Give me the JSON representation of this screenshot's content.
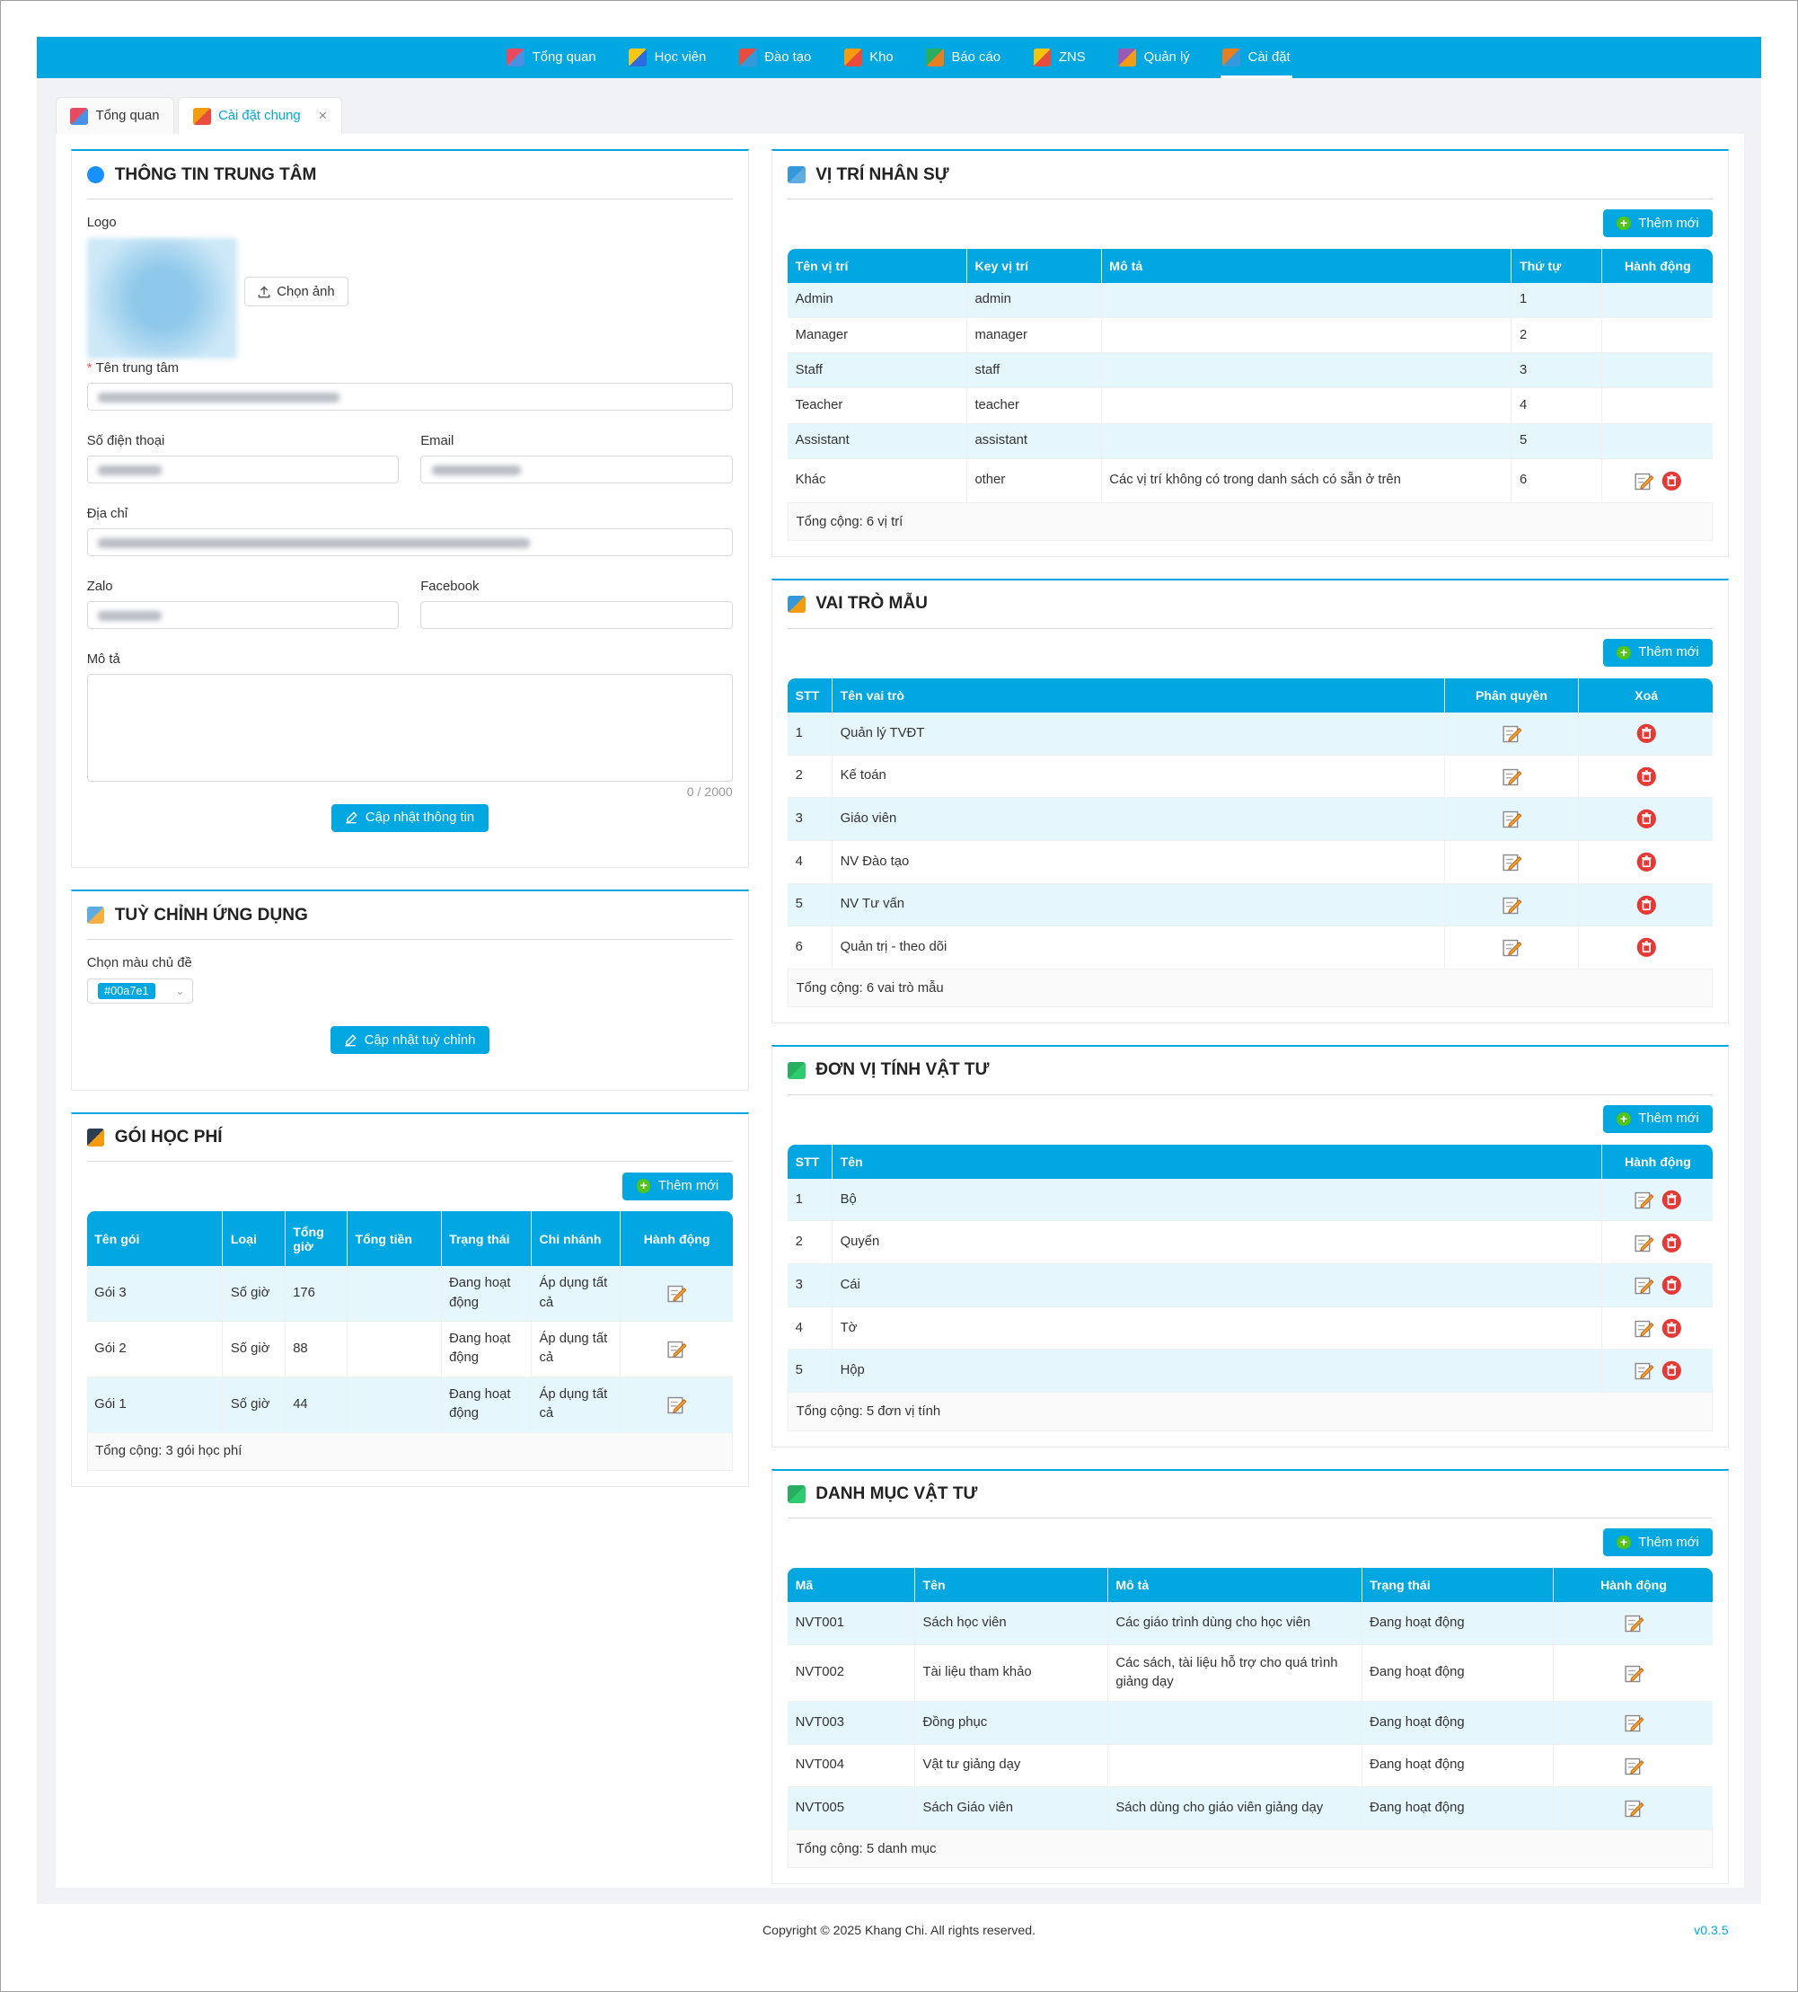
{
  "nav": {
    "items": [
      "Tổng quan",
      "Học viên",
      "Đào tạo",
      "Kho",
      "Báo cáo",
      "ZNS",
      "Quản lý",
      "Cài đặt"
    ],
    "active": 7
  },
  "tabs": {
    "items": [
      "Tổng quan",
      "Cài đặt chung"
    ],
    "active": 1
  },
  "center_info": {
    "title": "THÔNG TIN TRUNG TÂM",
    "logo_label": "Logo",
    "upload_button": "Chọn ảnh",
    "fields": {
      "name": "Tên trung tâm",
      "phone": "Số điện thoại",
      "email": "Email",
      "address": "Địa chỉ",
      "zalo": "Zalo",
      "facebook": "Facebook",
      "description": "Mô tả"
    },
    "char_count": "0 / 2000",
    "submit": "Cập nhật thông tin"
  },
  "customize": {
    "title": "TUỲ CHỈNH ỨNG DỤNG",
    "color_label": "Chọn màu chủ đề",
    "color_value": "#00a7e1",
    "submit": "Cập nhật tuỳ chỉnh"
  },
  "fee_packages": {
    "title": "GÓI HỌC PHÍ",
    "add_button": "Thêm mới",
    "columns": [
      "Tên gói",
      "Loại",
      "Tổng giờ",
      "Tổng tiền",
      "Trạng thái",
      "Chi nhánh",
      "Hành động"
    ],
    "rows": [
      [
        "Gói 3",
        "Số giờ",
        "176",
        null,
        "Đang hoạt động",
        "Áp dụng tất cả"
      ],
      [
        "Gói 2",
        "Số giờ",
        "88",
        null,
        "Đang hoạt động",
        "Áp dụng tất cả"
      ],
      [
        "Gói 1",
        "Số giờ",
        "44",
        null,
        "Đang hoạt động",
        "Áp dụng tất cả"
      ]
    ],
    "total": "Tổng cộng: 3 gói học phí"
  },
  "staff_positions": {
    "title": "VỊ TRÍ NHÂN SỰ",
    "add_button": "Thêm mới",
    "columns": [
      "Tên vị trí",
      "Key vị trí",
      "Mô tả",
      "Thứ tự",
      "Hành động"
    ],
    "rows": [
      [
        "Admin",
        "admin",
        null,
        "1"
      ],
      [
        "Manager",
        "manager",
        null,
        "2"
      ],
      [
        "Staff",
        "staff",
        null,
        "3"
      ],
      [
        "Teacher",
        "teacher",
        null,
        "4"
      ],
      [
        "Assistant",
        "assistant",
        null,
        "5"
      ],
      [
        "Khác",
        "other",
        "Các vị trí không có trong danh sách có sẵn ở trên",
        "6"
      ]
    ],
    "total": "Tổng cộng: 6 vị trí"
  },
  "role_templates": {
    "title": "VAI TRÒ MẪU",
    "add_button": "Thêm mới",
    "columns": [
      "STT",
      "Tên vai trò",
      "Phân quyền",
      "Xoá"
    ],
    "rows": [
      [
        "1",
        "Quản lý TVĐT"
      ],
      [
        "2",
        "Kế toán"
      ],
      [
        "3",
        "Giáo viên"
      ],
      [
        "4",
        "NV Đào tạo"
      ],
      [
        "5",
        "NV Tư vấn"
      ],
      [
        "6",
        "Quản trị - theo dõi"
      ]
    ],
    "total": "Tổng cộng: 6 vai trò mẫu"
  },
  "supply_units": {
    "title": "ĐƠN VỊ TÍNH VẬT TƯ",
    "add_button": "Thêm mới",
    "columns": [
      "STT",
      "Tên",
      "Hành động"
    ],
    "rows": [
      [
        "1",
        "Bộ"
      ],
      [
        "2",
        "Quyển"
      ],
      [
        "3",
        "Cái"
      ],
      [
        "4",
        "Tờ"
      ],
      [
        "5",
        "Hộp"
      ]
    ],
    "total": "Tổng cộng: 5 đơn vị tính"
  },
  "supply_categories": {
    "title": "DANH MỤC VẬT TƯ",
    "add_button": "Thêm mới",
    "columns": [
      "Mã",
      "Tên",
      "Mô tả",
      "Trạng thái",
      "Hành động"
    ],
    "rows": [
      [
        "NVT001",
        "Sách học viên",
        "Các giáo trình dùng cho học viên",
        "Đang hoạt động"
      ],
      [
        "NVT002",
        "Tài liệu tham khảo",
        "Các sách, tài liệu hỗ trợ cho quá trình giảng dạy",
        "Đang hoạt động"
      ],
      [
        "NVT003",
        "Đồng phục",
        null,
        "Đang hoạt động"
      ],
      [
        "NVT004",
        "Vật tư giảng dạy",
        null,
        "Đang hoạt động"
      ],
      [
        "NVT005",
        "Sách Giáo viên",
        "Sách dùng cho giáo viên giảng dạy",
        "Đang hoạt động"
      ]
    ],
    "total": "Tổng cộng: 5 danh mục"
  },
  "footer": {
    "copyright": "Copyright © 2025 Khang Chi. All rights reserved.",
    "version": "v0.3.5"
  }
}
